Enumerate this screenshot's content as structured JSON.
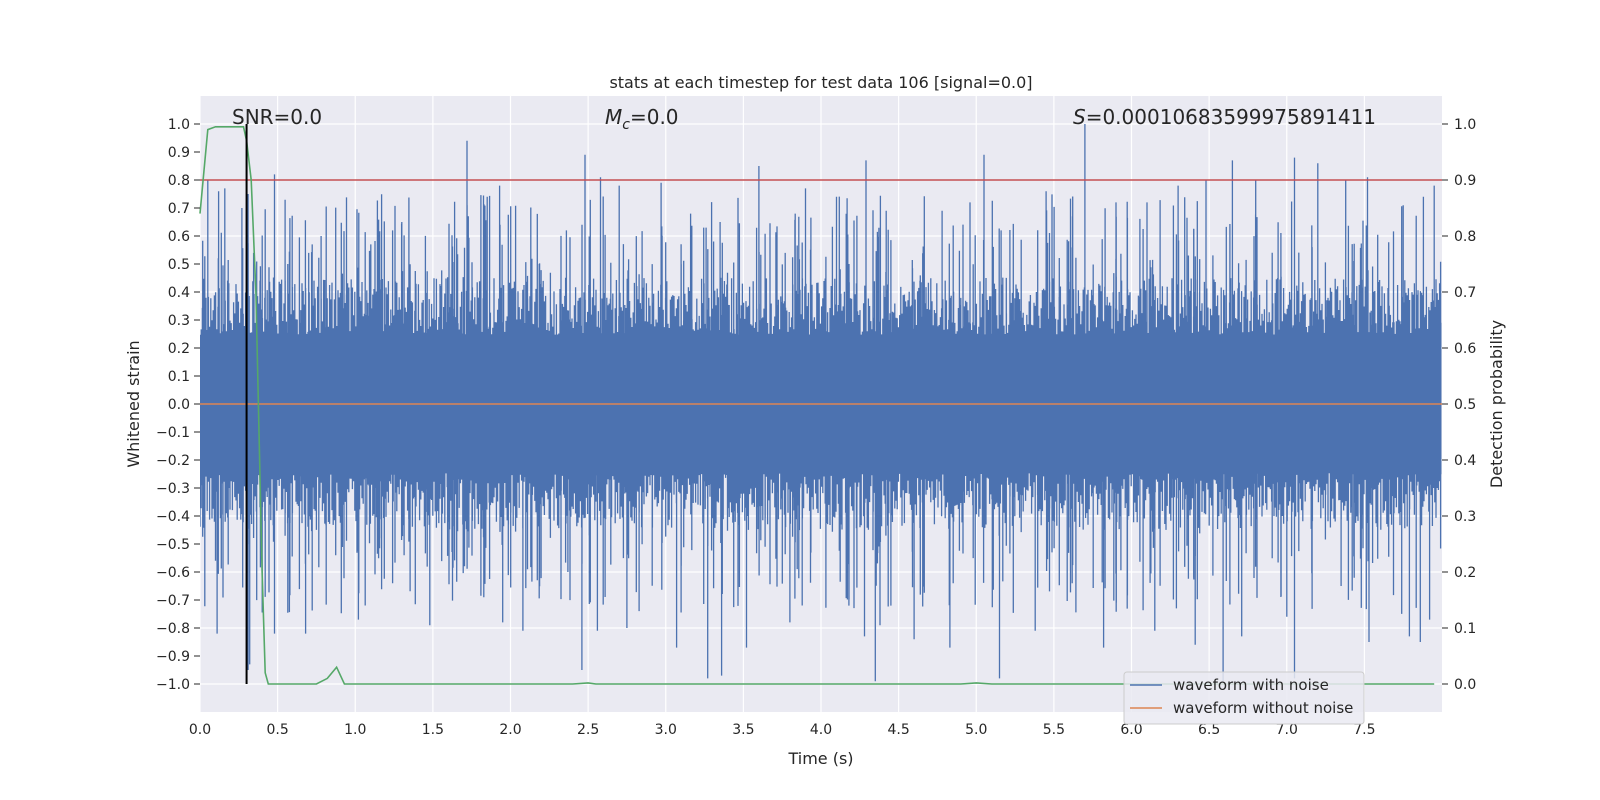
{
  "chart_data": {
    "type": "line",
    "title": "stats at each timestep for test data 106 [signal=0.0]",
    "xlabel": "Time (s)",
    "ylabel": "Whitened strain",
    "y2label": "Detection probability",
    "xlim": [
      0.0,
      8.0
    ],
    "ylim": [
      -1.1,
      1.1
    ],
    "y2lim": [
      -0.05,
      1.05
    ],
    "xticks": [
      "0.0",
      "0.5",
      "1.0",
      "1.5",
      "2.0",
      "2.5",
      "3.0",
      "3.5",
      "4.0",
      "4.5",
      "5.0",
      "5.5",
      "6.0",
      "6.5",
      "7.0",
      "7.5"
    ],
    "yticks": [
      "−1.0",
      "−0.9",
      "−0.8",
      "−0.7",
      "−0.6",
      "−0.5",
      "−0.4",
      "−0.3",
      "−0.2",
      "−0.1",
      "0.0",
      "0.1",
      "0.2",
      "0.3",
      "0.4",
      "0.5",
      "0.6",
      "0.7",
      "0.8",
      "0.9",
      "1.0"
    ],
    "y2ticks": [
      "0.0",
      "0.1",
      "0.2",
      "0.3",
      "0.4",
      "0.5",
      "0.6",
      "0.7",
      "0.8",
      "0.9",
      "1.0"
    ],
    "annotations": {
      "snr": "SNR=0.0",
      "mc_symbol": "M",
      "mc_subscript": "c",
      "mc_value": "=0.0",
      "s_symbol": "S",
      "s_value": "=0.00010683599975891411"
    },
    "grid": true,
    "legend_placement": "lower right",
    "series": [
      {
        "name": "waveform with noise",
        "color": "#4c72b0",
        "axis": "left",
        "envelope_typical": [
          -0.45,
          0.45
        ],
        "peaks_x": [
          0.05,
          0.12,
          0.16,
          0.27,
          0.31,
          0.48,
          0.78,
          1.1,
          1.3,
          1.72,
          1.85,
          1.93,
          2.36,
          2.48,
          2.58,
          2.7,
          2.97,
          3.16,
          3.26,
          3.35,
          3.6,
          3.9,
          4.1,
          4.29,
          4.42,
          4.78,
          4.96,
          5.05,
          5.16,
          5.45,
          5.62,
          5.7,
          5.9,
          6.1,
          6.3,
          6.48,
          6.65,
          6.8,
          7.05,
          7.2,
          7.38,
          7.52,
          7.75,
          7.88,
          7.95
        ],
        "peaks_y": [
          0.8,
          0.76,
          0.77,
          0.7,
          0.75,
          0.82,
          0.6,
          0.57,
          0.65,
          0.94,
          0.74,
          0.78,
          0.62,
          0.89,
          0.81,
          0.78,
          0.79,
          0.68,
          0.63,
          0.65,
          0.85,
          0.77,
          0.74,
          0.87,
          0.69,
          0.69,
          0.72,
          0.89,
          0.62,
          0.76,
          0.67,
          1.0,
          0.72,
          0.72,
          0.78,
          0.8,
          0.87,
          0.8,
          0.88,
          0.86,
          0.8,
          0.81,
          0.71,
          0.74,
          0.78
        ],
        "troughs_x": [
          0.1,
          0.11,
          0.31,
          0.32,
          0.48,
          0.68,
          1.02,
          1.48,
          1.95,
          2.08,
          2.37,
          2.46,
          2.56,
          2.75,
          3.07,
          3.27,
          3.36,
          3.52,
          3.8,
          4.18,
          4.28,
          4.35,
          4.38,
          4.6,
          4.83,
          5.15,
          5.38,
          5.82,
          6.15,
          6.41,
          6.59,
          6.71,
          7.0,
          7.05,
          7.35,
          7.53,
          7.79,
          7.86,
          7.92
        ],
        "troughs_y": [
          -0.56,
          -0.82,
          -0.95,
          -0.93,
          -0.82,
          -0.82,
          -0.77,
          -0.79,
          -0.78,
          -0.81,
          -0.6,
          -0.95,
          -0.81,
          -0.8,
          -0.87,
          -0.98,
          -0.97,
          -0.87,
          -0.78,
          -0.72,
          -0.83,
          -0.99,
          -0.79,
          -0.84,
          -0.87,
          -0.98,
          -0.81,
          -0.87,
          -0.81,
          -0.86,
          -0.99,
          -0.83,
          -0.76,
          -0.98,
          -0.65,
          -0.85,
          -0.83,
          -0.85,
          -0.77
        ]
      },
      {
        "name": "waveform without noise",
        "color": "#dd8452",
        "axis": "left",
        "value": 0.0
      },
      {
        "color": "#55a868",
        "axis": "right",
        "x": [
          0.0,
          0.05,
          0.1,
          0.18,
          0.22,
          0.25,
          0.28,
          0.3,
          0.33,
          0.36,
          0.4,
          0.42,
          0.44,
          0.5,
          0.75,
          0.82,
          0.88,
          0.93,
          0.97,
          1.5,
          2.4,
          2.5,
          2.55,
          4.9,
          5.0,
          5.1,
          7.95
        ],
        "y": [
          0.84,
          0.99,
          0.995,
          0.995,
          0.995,
          0.995,
          0.995,
          0.97,
          0.9,
          0.7,
          0.2,
          0.02,
          0.0,
          0.0,
          0.0,
          0.01,
          0.03,
          0.0,
          0.0,
          0.0,
          0.0,
          0.002,
          0.0,
          0.0,
          0.002,
          0.0,
          0.0
        ]
      }
    ],
    "threshold": {
      "color": "#c44e52",
      "axis": "right",
      "value": 0.9
    },
    "marker_line": {
      "color": "#000000",
      "x": 0.3
    }
  }
}
